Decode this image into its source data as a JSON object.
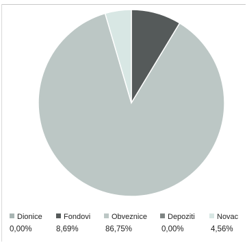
{
  "chart_data": {
    "type": "pie",
    "categories": [
      "Dionice",
      "Fondovi",
      "Obveznice",
      "Depoziti",
      "Novac"
    ],
    "values": [
      0.0,
      8.69,
      86.75,
      0.0,
      4.56
    ],
    "value_labels": [
      "0,00%",
      "8,69%",
      "86,75%",
      "0,00%",
      "4,56%"
    ],
    "colors": [
      "#a8b5b3",
      "#555a5a",
      "#bcc7c5",
      "#7f8584",
      "#d8e7e4"
    ],
    "legend": "bottom",
    "start_angle_deg": 0,
    "direction": "clockwise"
  }
}
